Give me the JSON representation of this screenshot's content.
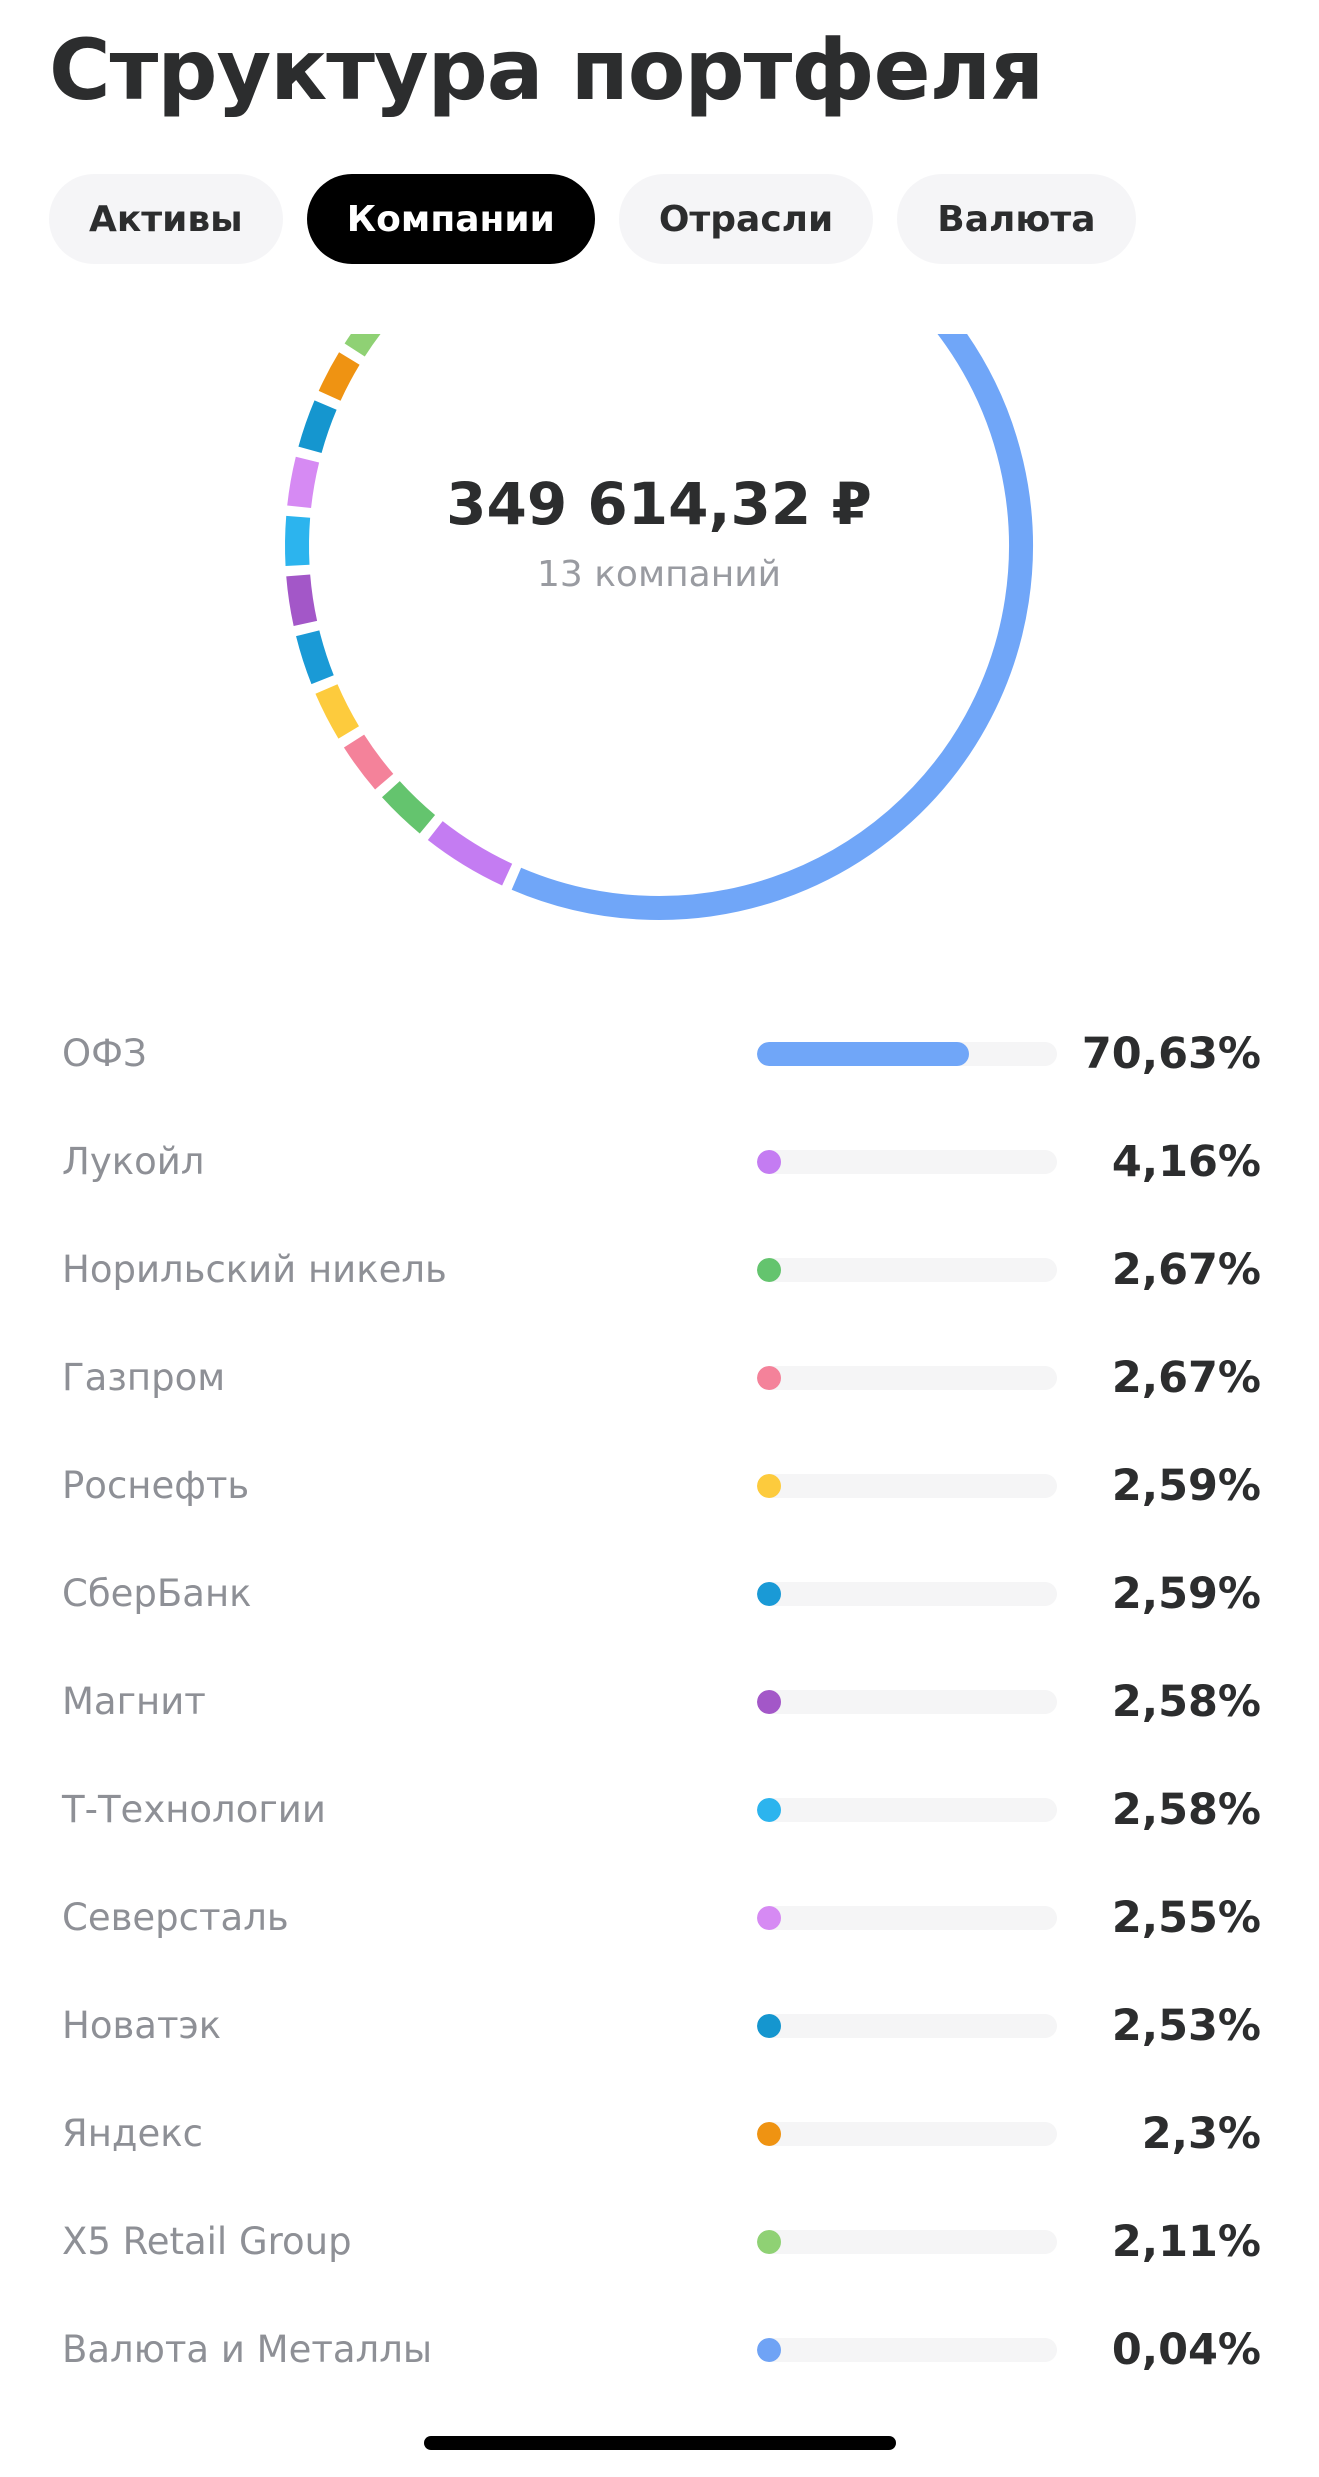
{
  "page": {
    "title": "Структура портфеля"
  },
  "tabs": [
    {
      "label": "Активы",
      "active": false
    },
    {
      "label": "Компании",
      "active": true
    },
    {
      "label": "Отрасли",
      "active": false
    },
    {
      "label": "Валюта",
      "active": false
    }
  ],
  "summary": {
    "total": "349 614,32 ₽",
    "count_label": "13 компаний"
  },
  "chart_data": {
    "type": "pie",
    "categories": [
      "ОФЗ",
      "Лукойл",
      "Норильский никель",
      "Газпром",
      "Роснефть",
      "СберБанк",
      "Магнит",
      "Т-Технологии",
      "Северсталь",
      "Новатэк",
      "Яндекс",
      "X5 Retail Group",
      "Валюта и Металлы"
    ],
    "values": [
      70.63,
      4.16,
      2.67,
      2.67,
      2.59,
      2.59,
      2.58,
      2.58,
      2.55,
      2.53,
      2.3,
      2.11,
      0.04
    ],
    "colors": [
      "#70a6f8",
      "#c47cf2",
      "#64c46e",
      "#f4829a",
      "#fdcb3d",
      "#1a9ad6",
      "#a357c8",
      "#2cb4ee",
      "#d68af3",
      "#1596cf",
      "#ef9312",
      "#8fd174",
      "#6fa3f5"
    ]
  },
  "holdings": [
    {
      "name": "ОФЗ",
      "percent": "70,63%",
      "share": 70.63,
      "color": "#70a6f8"
    },
    {
      "name": "Лукойл",
      "percent": "4,16%",
      "share": 4.16,
      "color": "#c47cf2"
    },
    {
      "name": "Норильский никель",
      "percent": "2,67%",
      "share": 2.67,
      "color": "#64c46e"
    },
    {
      "name": "Газпром",
      "percent": "2,67%",
      "share": 2.67,
      "color": "#f4829a"
    },
    {
      "name": "Роснефть",
      "percent": "2,59%",
      "share": 2.59,
      "color": "#fdcb3d"
    },
    {
      "name": "СберБанк",
      "percent": "2,59%",
      "share": 2.59,
      "color": "#1a9ad6"
    },
    {
      "name": "Магнит",
      "percent": "2,58%",
      "share": 2.58,
      "color": "#a357c8"
    },
    {
      "name": "Т-Технологии",
      "percent": "2,58%",
      "share": 2.58,
      "color": "#2cb4ee"
    },
    {
      "name": "Северсталь",
      "percent": "2,55%",
      "share": 2.55,
      "color": "#d68af3"
    },
    {
      "name": "Новатэк",
      "percent": "2,53%",
      "share": 2.53,
      "color": "#1596cf"
    },
    {
      "name": "Яндекс",
      "percent": "2,3%",
      "share": 2.3,
      "color": "#ef9312"
    },
    {
      "name": "X5 Retail Group",
      "percent": "2,11%",
      "share": 2.11,
      "color": "#8fd174"
    },
    {
      "name": "Валюта и Металлы",
      "percent": "0,04%",
      "share": 0.04,
      "color": "#6fa3f5"
    }
  ]
}
